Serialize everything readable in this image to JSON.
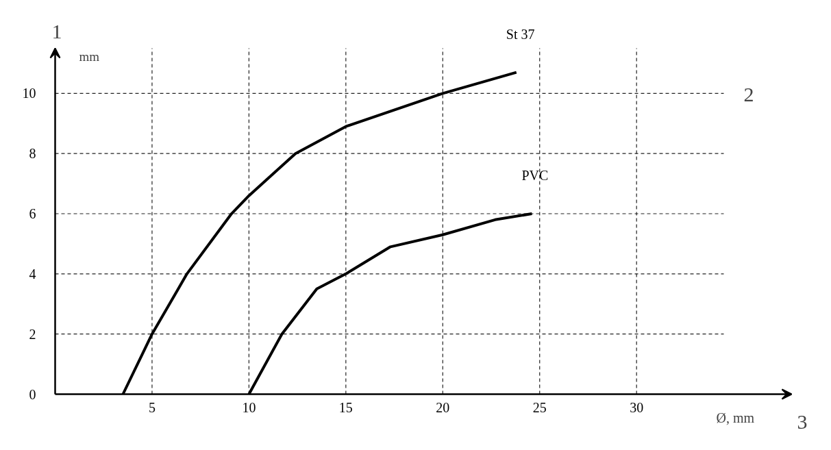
{
  "chart_data": {
    "type": "line",
    "xlabel": "Ø, mm",
    "ylabel": "mm",
    "xlim": [
      0,
      38
    ],
    "ylim": [
      0,
      11.5
    ],
    "xticks": [
      5,
      10,
      15,
      20,
      25,
      30
    ],
    "yticks": [
      0,
      2,
      4,
      6,
      8,
      10
    ],
    "grid": true,
    "legend": false,
    "marker": "none",
    "line_style": "solid",
    "annotations": [
      "1",
      "2",
      "3"
    ],
    "series": [
      {
        "name": "St 37",
        "color": "#000000",
        "x": [
          3.5,
          5,
          6.8,
          9.1,
          10,
          12.4,
          15,
          20,
          23.8
        ],
        "values": [
          0,
          2,
          4,
          6,
          6.6,
          8,
          8.9,
          10,
          10.7
        ]
      },
      {
        "name": "PVC",
        "color": "#000000",
        "x": [
          10,
          11.7,
          13.5,
          15,
          17.3,
          20,
          22.7,
          24.6
        ],
        "values": [
          0,
          2,
          3.5,
          4,
          4.9,
          5.3,
          5.8,
          6
        ]
      }
    ]
  }
}
